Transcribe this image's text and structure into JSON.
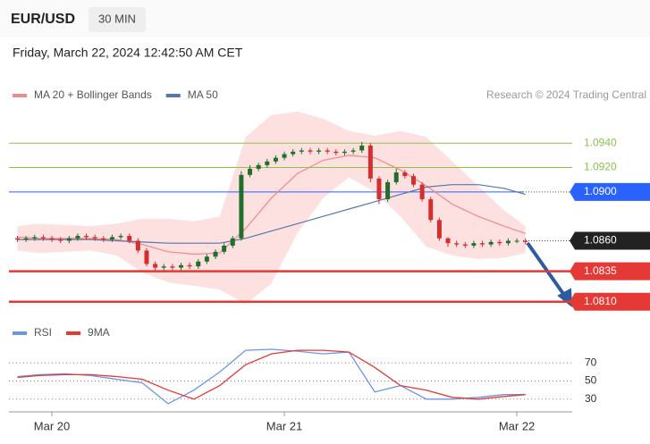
{
  "header": {
    "symbol": "EUR/USD",
    "timeframe": "30 MIN",
    "datetime": "Friday, March 22, 2024 12:42:50 AM CET"
  },
  "chart_data": [
    {
      "type": "candlestick",
      "credit": "Research © 2024 Trading Central",
      "up_color": "#1f6e2a",
      "down_color": "#d32f2f",
      "categories": [
        null,
        null,
        null,
        null,
        "Mar 20",
        null,
        null,
        null,
        null,
        null,
        null,
        null,
        null,
        null,
        null,
        null,
        null,
        null,
        null,
        null,
        null,
        null,
        null,
        null,
        null,
        null,
        null,
        null,
        null,
        null,
        null,
        "Mar 21",
        null,
        null,
        null,
        null,
        null,
        null,
        null,
        null,
        null,
        null,
        null,
        null,
        null,
        null,
        null,
        null,
        null,
        null,
        null,
        null,
        null,
        null,
        null,
        null,
        null,
        null,
        "Mar 22",
        null
      ],
      "open": [
        1.0862,
        1.0861,
        1.0862,
        1.0863,
        1.0862,
        1.0861,
        1.086,
        1.0862,
        1.0864,
        1.0863,
        1.0862,
        1.0861,
        1.0863,
        1.0864,
        1.086,
        1.0852,
        1.0841,
        1.0838,
        1.0839,
        1.0838,
        1.084,
        1.0839,
        1.0843,
        1.0847,
        1.0851,
        1.0856,
        1.0862,
        1.0914,
        1.0919,
        1.0922,
        1.0925,
        1.0928,
        1.0931,
        1.0933,
        1.0934,
        1.0933,
        1.0934,
        1.0933,
        1.0932,
        1.0933,
        1.0934,
        1.0938,
        1.0911,
        1.0894,
        1.0908,
        1.0916,
        1.0913,
        1.0906,
        1.0894,
        1.0877,
        1.0862,
        1.0858,
        1.0857,
        1.0856,
        1.0858,
        1.0857,
        1.0859,
        1.0858,
        1.086,
        1.086
      ],
      "high": [
        1.0864,
        1.0864,
        1.0865,
        1.0865,
        1.0864,
        1.0863,
        1.0864,
        1.0866,
        1.0866,
        1.0865,
        1.0864,
        1.0865,
        1.0866,
        1.0866,
        1.0862,
        1.0854,
        1.0843,
        1.0841,
        1.0841,
        1.0842,
        1.0842,
        1.0845,
        1.0849,
        1.0853,
        1.0858,
        1.0864,
        1.0917,
        1.0922,
        1.0924,
        1.0927,
        1.093,
        1.0933,
        1.0935,
        1.0936,
        1.0936,
        1.0936,
        1.0936,
        1.0935,
        1.0935,
        1.0936,
        1.0941,
        1.094,
        1.0913,
        1.091,
        1.0919,
        1.0918,
        1.0915,
        1.0908,
        1.0896,
        1.0879,
        1.0863,
        1.086,
        1.0859,
        1.086,
        1.086,
        1.0861,
        1.0861,
        1.0862,
        1.0862,
        1.0862
      ],
      "low": [
        1.0859,
        1.0859,
        1.086,
        1.086,
        1.0859,
        1.0858,
        1.0858,
        1.086,
        1.0861,
        1.086,
        1.0859,
        1.0859,
        1.0861,
        1.0858,
        1.085,
        1.0839,
        1.0836,
        1.0836,
        1.0836,
        1.0836,
        1.0837,
        1.0837,
        1.0841,
        1.0845,
        1.0849,
        1.0854,
        1.086,
        1.0912,
        1.0917,
        1.092,
        1.0923,
        1.0926,
        1.0929,
        1.0931,
        1.0931,
        1.0931,
        1.0931,
        1.093,
        1.093,
        1.0931,
        1.0932,
        1.0908,
        1.089,
        1.0892,
        1.0906,
        1.0911,
        1.0904,
        1.0892,
        1.0875,
        1.086,
        1.0855,
        1.0855,
        1.0854,
        1.0854,
        1.0855,
        1.0855,
        1.0856,
        1.0856,
        1.0858,
        1.0857
      ],
      "close": [
        1.0861,
        1.0862,
        1.0863,
        1.0862,
        1.0861,
        1.086,
        1.0862,
        1.0864,
        1.0863,
        1.0862,
        1.0861,
        1.0863,
        1.0864,
        1.086,
        1.0852,
        1.0841,
        1.0838,
        1.0839,
        1.0838,
        1.084,
        1.0839,
        1.0843,
        1.0847,
        1.0851,
        1.0856,
        1.0862,
        1.0914,
        1.0919,
        1.0922,
        1.0925,
        1.0928,
        1.0931,
        1.0933,
        1.0934,
        1.0933,
        1.0934,
        1.0933,
        1.0932,
        1.0933,
        1.0934,
        1.0938,
        1.0911,
        1.0894,
        1.0908,
        1.0916,
        1.0913,
        1.0906,
        1.0894,
        1.0877,
        1.0862,
        1.0858,
        1.0857,
        1.0856,
        1.0858,
        1.0857,
        1.0859,
        1.0858,
        1.086,
        1.086,
        1.0859
      ],
      "series": [
        {
          "name": "MA 20 + Bollinger Bands",
          "color": "#f08a8a",
          "band_color": "#fde0e0",
          "x": [
            0.5,
            3,
            6,
            9,
            12,
            15,
            18,
            21,
            24,
            27,
            30,
            33,
            36,
            39,
            42,
            45,
            48,
            51,
            54,
            57,
            59.5
          ],
          "values": [
            1.0863,
            1.0862,
            1.0862,
            1.0862,
            1.0861,
            1.0857,
            1.0851,
            1.0849,
            1.085,
            1.087,
            1.0895,
            1.0915,
            1.0926,
            1.093,
            1.0928,
            1.0918,
            1.0905,
            1.089,
            1.088,
            1.0872,
            1.0866
          ],
          "upper": [
            1.0872,
            1.0874,
            1.0873,
            1.0872,
            1.0874,
            1.0878,
            1.0878,
            1.0876,
            1.088,
            1.0945,
            1.0963,
            1.0966,
            1.096,
            1.095,
            1.0946,
            1.095,
            1.0945,
            1.0925,
            1.0905,
            1.0885,
            1.0872
          ],
          "lower": [
            1.0852,
            1.085,
            1.0851,
            1.0852,
            1.0848,
            1.0834,
            1.0826,
            1.0823,
            1.082,
            1.0808,
            1.0825,
            1.0866,
            1.0895,
            1.0912,
            1.09,
            1.088,
            1.0855,
            1.0848,
            1.0845,
            1.0846,
            1.085
          ]
        },
        {
          "name": "MA 50",
          "color": "#5577aa",
          "x": [
            0.5,
            3,
            6,
            9,
            12,
            15,
            18,
            21,
            24,
            27,
            30,
            33,
            36,
            39,
            42,
            45,
            48,
            51,
            54,
            57,
            59.5
          ],
          "values": [
            1.0861,
            1.0861,
            1.0861,
            1.0861,
            1.086,
            1.0859,
            1.0858,
            1.0858,
            1.0858,
            1.0862,
            1.0868,
            1.0874,
            1.088,
            1.0886,
            1.0892,
            1.0898,
            1.0904,
            1.0906,
            1.0906,
            1.0903,
            1.0898
          ]
        }
      ],
      "levels": [
        {
          "value": 1.094,
          "label": "1.0940",
          "color": "#8bc34a",
          "style": "thin"
        },
        {
          "value": 1.092,
          "label": "1.0920",
          "color": "#8bc34a",
          "style": "thin"
        },
        {
          "value": 1.09,
          "label": "1.0900",
          "color": "#2962ff",
          "style": "main"
        },
        {
          "value": 1.086,
          "label": "1.0860",
          "color": "#222222",
          "style": "last"
        },
        {
          "value": 1.0835,
          "label": "1.0835",
          "color": "#e53935",
          "style": "strong"
        },
        {
          "value": 1.081,
          "label": "1.0810",
          "color": "#e53935",
          "style": "strong"
        }
      ],
      "xlim": [
        0,
        60
      ],
      "ylim": [
        1.0804,
        1.0968
      ]
    },
    {
      "type": "line",
      "series": [
        {
          "name": "RSI",
          "color": "#6c95ea",
          "x": [
            0.5,
            3,
            6,
            9,
            12,
            15,
            18,
            21,
            24,
            27,
            30,
            33,
            36,
            39,
            42,
            45,
            48,
            51,
            54,
            57,
            59.5
          ],
          "values": [
            55,
            57,
            58,
            56,
            52,
            48,
            25,
            40,
            60,
            84,
            85,
            83,
            80,
            82,
            38,
            45,
            30,
            30,
            32,
            35,
            35
          ]
        },
        {
          "name": "9MA",
          "color": "#e53935",
          "x": [
            0.5,
            3,
            6,
            9,
            12,
            15,
            18,
            21,
            24,
            27,
            30,
            33,
            36,
            39,
            42,
            45,
            48,
            51,
            54,
            57,
            59.5
          ],
          "values": [
            54,
            56,
            57,
            57,
            55,
            52,
            40,
            30,
            45,
            68,
            80,
            84,
            84,
            82,
            65,
            45,
            40,
            32,
            30,
            33,
            35
          ]
        }
      ],
      "xlim": [
        0,
        60
      ],
      "ylim": [
        15,
        88
      ],
      "yticks": [
        30,
        50,
        70
      ]
    }
  ]
}
